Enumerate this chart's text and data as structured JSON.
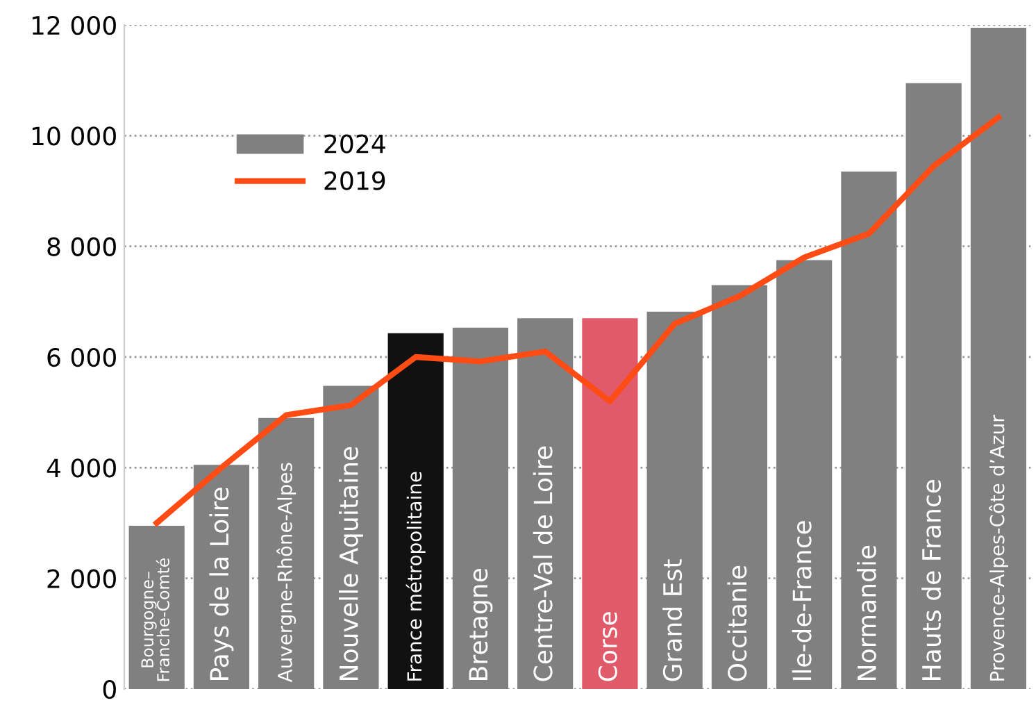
{
  "chart_data": {
    "type": "bar",
    "categories": [
      "Bourgogne–\nFranche-Comté",
      "Pays de la Loire",
      "Auvergne-Rhône-Alpes",
      "Nouvelle Aquitaine",
      "France métropolitaine",
      "Bretagne",
      "Centre-Val de Loire",
      "Corse",
      "Grand Est",
      "Occitanie",
      "Ile-de-France",
      "Normandie",
      "Hauts de France",
      "Provence-Alpes-Côte d’Azur"
    ],
    "series": [
      {
        "name": "2024",
        "color": "#808080",
        "colors": [
          "#808080",
          "#808080",
          "#808080",
          "#808080",
          "#111111",
          "#808080",
          "#808080",
          "#e05a6a",
          "#808080",
          "#808080",
          "#808080",
          "#808080",
          "#808080",
          "#808080"
        ],
        "values": [
          2950,
          4050,
          4900,
          5480,
          6430,
          6530,
          6700,
          6700,
          6820,
          7300,
          7750,
          9350,
          10950,
          11950
        ]
      },
      {
        "name": "2019",
        "type": "line",
        "color": "#ff4b14",
        "values": [
          3000,
          4000,
          4950,
          5130,
          6000,
          5920,
          6100,
          5200,
          6600,
          7100,
          7800,
          8230,
          9450,
          10330
        ]
      }
    ],
    "ylim": [
      0,
      12000
    ],
    "yticks": [
      0,
      {
        "value": 2000,
        "label": "2 000"
      },
      {
        "value": 4000,
        "label": "4 000"
      },
      {
        "value": 6000,
        "label": "6 000"
      },
      {
        "value": 8000,
        "label": "8 000"
      },
      {
        "value": 10000,
        "label": "10 000"
      },
      {
        "value": 12000,
        "label": "12 000"
      }
    ],
    "grid": "y",
    "legend": "top left",
    "marker": "none",
    "line_style": "solid"
  }
}
